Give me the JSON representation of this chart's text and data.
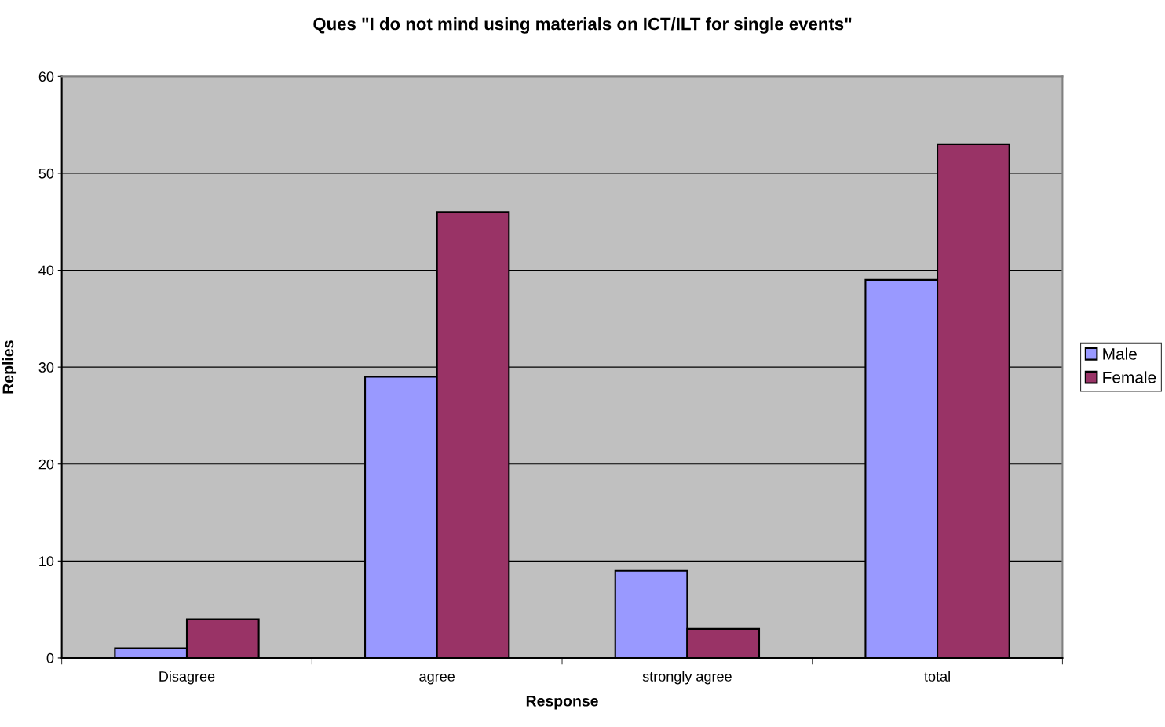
{
  "chart_data": {
    "type": "bar",
    "title": "Ques \"I do not mind using materials on ICT/ILT for single events\"",
    "xlabel": "Response",
    "ylabel": "Replies",
    "categories": [
      "Disagree",
      "agree",
      "strongly agree",
      "total"
    ],
    "series": [
      {
        "name": "Male",
        "color": "#9999ff",
        "values": [
          1,
          29,
          9,
          39
        ]
      },
      {
        "name": "Female",
        "color": "#993366",
        "values": [
          4,
          46,
          3,
          53
        ]
      }
    ],
    "ylim": [
      0,
      60
    ],
    "yticks": [
      0,
      10,
      20,
      30,
      40,
      50,
      60
    ],
    "grid": "y",
    "legend": "right"
  }
}
